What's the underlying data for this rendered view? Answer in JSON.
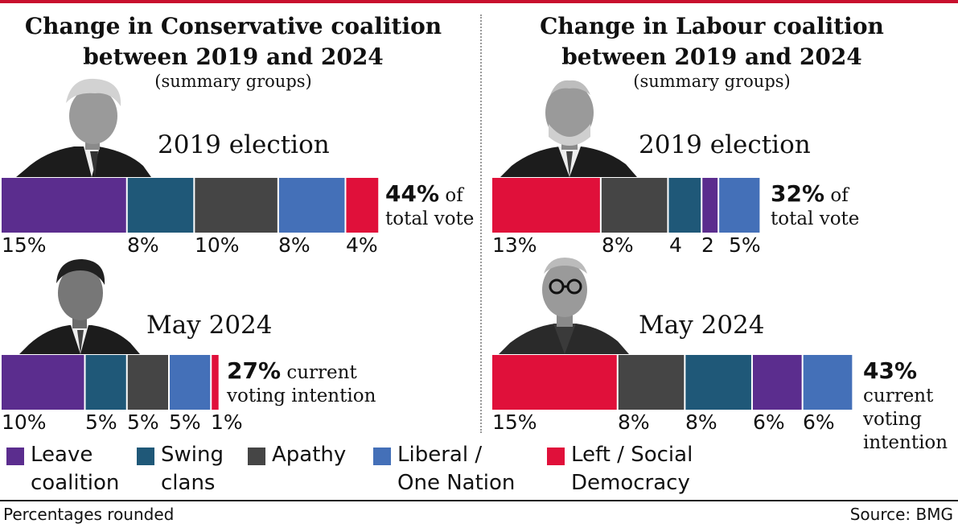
{
  "colors": {
    "leave": "#5b2d8e",
    "swing": "#1f5878",
    "apathy": "#454545",
    "liberal": "#4470b8",
    "left": "#e0103a"
  },
  "left_panel": {
    "title_line1": "Change in Conservative coalition",
    "title_line2": "between 2019 and 2024",
    "subtitle": "(summary groups)",
    "label_2019": "2019 election",
    "label_2024": "May 2024",
    "total_2019_value": "44%",
    "total_2019_text": " of total vote",
    "total_2024_value": "27%",
    "total_2024_text": " current voting intention"
  },
  "right_panel": {
    "title_line1": "Change in Labour coalition",
    "title_line2": "between 2019 and 2024",
    "subtitle": "(summary groups)",
    "label_2019": "2019 election",
    "label_2024": "May 2024",
    "total_2019_value": "32%",
    "total_2019_text": " of total vote",
    "total_2024_value": "43%",
    "total_2024_text": "current voting intention"
  },
  "chart_data": [
    {
      "type": "bar",
      "stacked": true,
      "orientation": "horizontal",
      "title": "Change in Conservative coalition between 2019 and 2024 — 2019 election",
      "total": 44,
      "series": [
        {
          "name": "Leave coalition",
          "value": 15,
          "label": "15%"
        },
        {
          "name": "Swing clans",
          "value": 8,
          "label": "8%"
        },
        {
          "name": "Apathy",
          "value": 10,
          "label": "10%"
        },
        {
          "name": "Liberal / One Nation",
          "value": 8,
          "label": "8%"
        },
        {
          "name": "Left / Social Democracy",
          "value": 4,
          "label": "4%"
        }
      ]
    },
    {
      "type": "bar",
      "stacked": true,
      "orientation": "horizontal",
      "title": "Change in Conservative coalition between 2019 and 2024 — May 2024",
      "total": 27,
      "series": [
        {
          "name": "Leave coalition",
          "value": 10,
          "label": "10%"
        },
        {
          "name": "Swing clans",
          "value": 5,
          "label": "5%"
        },
        {
          "name": "Apathy",
          "value": 5,
          "label": "5%"
        },
        {
          "name": "Liberal / One Nation",
          "value": 5,
          "label": "5%"
        },
        {
          "name": "Left / Social Democracy",
          "value": 1,
          "label": "1%"
        }
      ]
    },
    {
      "type": "bar",
      "stacked": true,
      "orientation": "horizontal",
      "title": "Change in Labour coalition between 2019 and 2024 — 2019 election",
      "total": 32,
      "series": [
        {
          "name": "Left / Social Democracy",
          "value": 13,
          "label": "13%"
        },
        {
          "name": "Apathy",
          "value": 8,
          "label": "8%"
        },
        {
          "name": "Swing clans",
          "value": 4,
          "label": "4"
        },
        {
          "name": "Leave coalition",
          "value": 2,
          "label": "2"
        },
        {
          "name": "Liberal / One Nation",
          "value": 5,
          "label": "5%"
        }
      ]
    },
    {
      "type": "bar",
      "stacked": true,
      "orientation": "horizontal",
      "title": "Change in Labour coalition between 2019 and 2024 — May 2024",
      "total": 43,
      "series": [
        {
          "name": "Left / Social Democracy",
          "value": 15,
          "label": "15%"
        },
        {
          "name": "Apathy",
          "value": 8,
          "label": "8%"
        },
        {
          "name": "Swing clans",
          "value": 8,
          "label": "8%"
        },
        {
          "name": "Leave coalition",
          "value": 6,
          "label": "6%"
        },
        {
          "name": "Liberal / One Nation",
          "value": 6,
          "label": "6%"
        }
      ]
    }
  ],
  "legend": [
    {
      "key": "leave",
      "label": "Leave\ncoalition"
    },
    {
      "key": "swing",
      "label": "Swing\nclans"
    },
    {
      "key": "apathy",
      "label": "Apathy"
    },
    {
      "key": "liberal",
      "label": "Liberal /\nOne Nation"
    },
    {
      "key": "left",
      "label": "Left / Social\nDemocracy"
    }
  ],
  "footer": {
    "note": "Percentages rounded",
    "source": "Source: BMG"
  }
}
